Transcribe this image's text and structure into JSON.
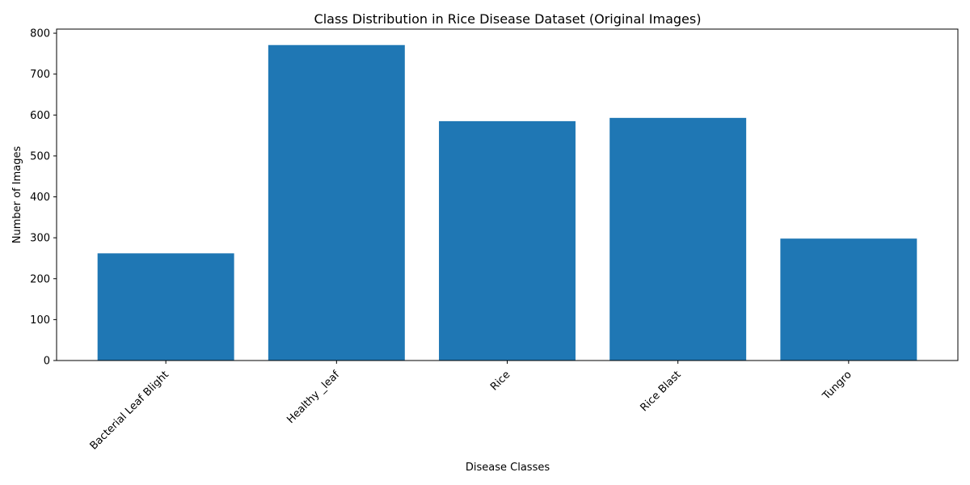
{
  "chart_data": {
    "type": "bar",
    "title": "Class Distribution in Rice Disease Dataset (Original Images)",
    "xlabel": "Disease Classes",
    "ylabel": "Number of Images",
    "categories": [
      "Bacterial Leaf Blight",
      "Healthy _leaf",
      "Rice",
      "Rice Blast",
      "Tungro"
    ],
    "values": [
      262,
      771,
      585,
      593,
      298
    ],
    "ylim": [
      0,
      810
    ],
    "yticks": [
      0,
      100,
      200,
      300,
      400,
      500,
      600,
      700,
      800
    ],
    "xtick_rotation_deg": 45,
    "grid": false,
    "legend": "none",
    "bar_color": "#1f77b4"
  }
}
